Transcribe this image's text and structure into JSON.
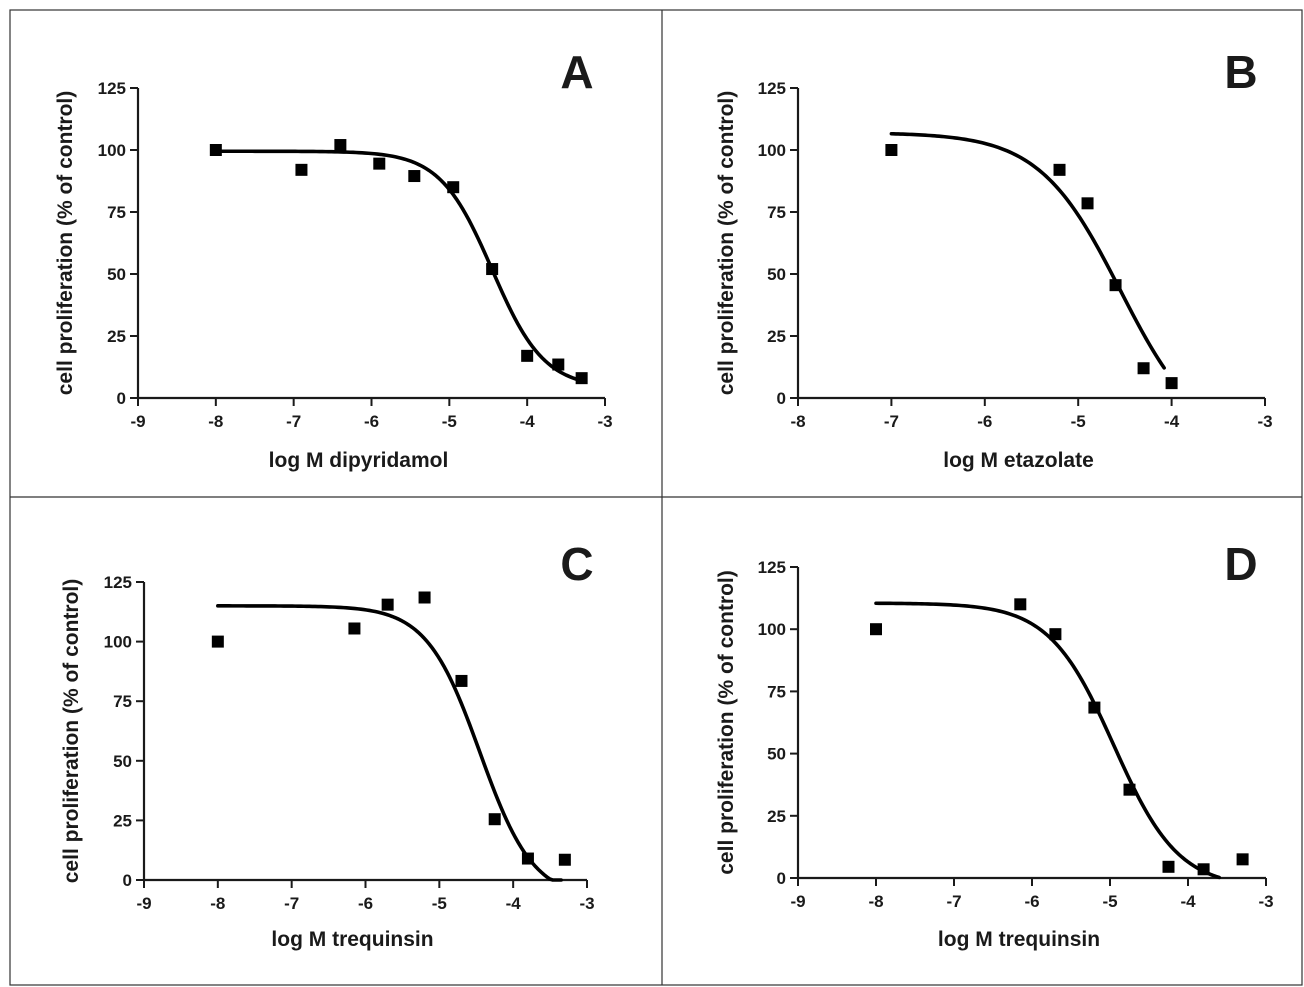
{
  "chart_data": [
    {
      "type": "scatter",
      "panel_label": "A",
      "xlabel": "log M dipyridamol",
      "ylabel": "cell proliferation (% of control)",
      "xlim": [
        -9,
        -3
      ],
      "ylim": [
        0,
        125
      ],
      "xticks": [
        -9,
        -8,
        -7,
        -6,
        -5,
        -4,
        -3
      ],
      "yticks": [
        0,
        25,
        50,
        75,
        100,
        125
      ],
      "points": {
        "x": [
          -8,
          -6.9,
          -6.4,
          -5.9,
          -5.45,
          -4.95,
          -4.45,
          -4.0,
          -3.6,
          -3.3
        ],
        "y": [
          100,
          92,
          102,
          94.5,
          89.5,
          85,
          52,
          17,
          13.5,
          8
        ]
      },
      "fit": {
        "top": 99.5,
        "bottom": 4,
        "logIC50": -4.45,
        "hill": 1.3,
        "x_range": [
          -8,
          -3.3
        ]
      }
    },
    {
      "type": "scatter",
      "panel_label": "B",
      "xlabel": "log M etazolate",
      "ylabel": "cell proliferation (% of control)",
      "xlim": [
        -8,
        -3
      ],
      "ylim": [
        0,
        125
      ],
      "xticks": [
        -8,
        -7,
        -6,
        -5,
        -4,
        -3
      ],
      "yticks": [
        0,
        25,
        50,
        75,
        100,
        125
      ],
      "points": {
        "x": [
          -7,
          -5.2,
          -4.9,
          -4.6,
          -4.3,
          -4.0
        ],
        "y": [
          100,
          92,
          78.5,
          45.5,
          12,
          6
        ]
      },
      "fit": {
        "top": 107,
        "bottom": -20,
        "logIC50": -4.55,
        "hill": 1.0,
        "x_range": [
          -7,
          -4.08
        ]
      }
    },
    {
      "type": "scatter",
      "panel_label": "C",
      "xlabel": "log M trequinsin",
      "ylabel": "cell proliferation (% of control)",
      "xlim": [
        -9,
        -3
      ],
      "ylim": [
        0,
        125
      ],
      "xticks": [
        -9,
        -8,
        -7,
        -6,
        -5,
        -4,
        -3
      ],
      "yticks": [
        0,
        25,
        50,
        75,
        100,
        125
      ],
      "points": {
        "x": [
          -8,
          -6.15,
          -5.7,
          -5.2,
          -4.7,
          -4.25,
          -3.8,
          -3.3
        ],
        "y": [
          100,
          105.5,
          115.5,
          118.5,
          83.5,
          25.5,
          9,
          8.5
        ]
      },
      "fit": {
        "top": 115,
        "bottom": -8,
        "logIC50": -4.45,
        "hill": 1.2,
        "x_range": [
          -8,
          -3.35
        ]
      }
    },
    {
      "type": "scatter",
      "panel_label": "D",
      "xlabel": "log M trequinsin",
      "ylabel": "cell proliferation (% of control)",
      "xlim": [
        -9,
        -3
      ],
      "ylim": [
        0,
        125
      ],
      "xticks": [
        -9,
        -8,
        -7,
        -6,
        -5,
        -4,
        -3
      ],
      "yticks": [
        0,
        25,
        50,
        75,
        100,
        125
      ],
      "points": {
        "x": [
          -8,
          -6.15,
          -5.7,
          -5.2,
          -4.75,
          -4.25,
          -3.8,
          -3.3
        ],
        "y": [
          100,
          110,
          98,
          68.5,
          35.5,
          4.5,
          3.5,
          7.5
        ]
      },
      "fit": {
        "top": 110.5,
        "bottom": -4,
        "logIC50": -4.95,
        "hill": 1.05,
        "x_range": [
          -8,
          -3.6
        ]
      }
    }
  ]
}
